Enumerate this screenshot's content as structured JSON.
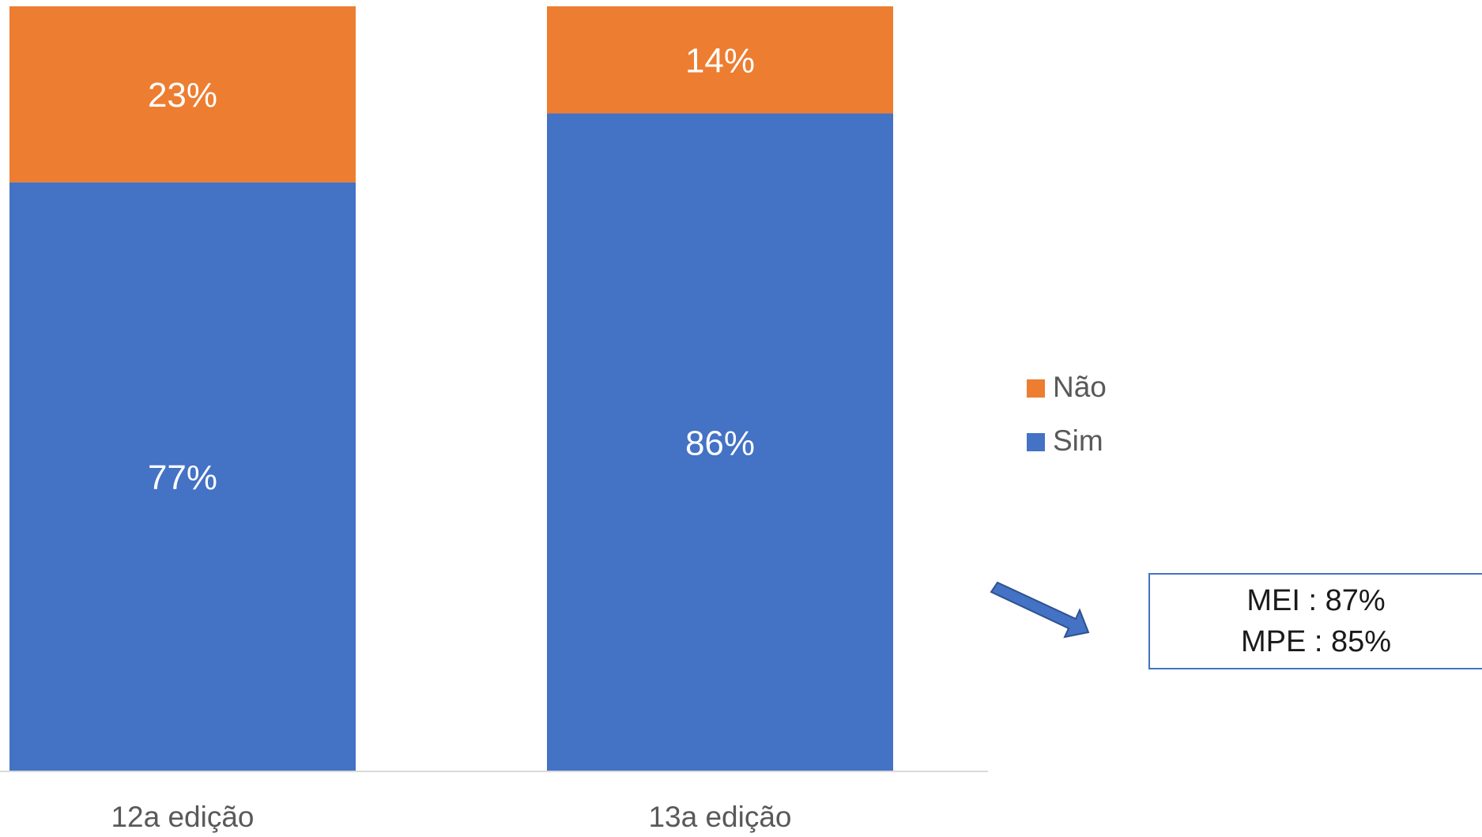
{
  "chart_data": {
    "type": "bar",
    "stacked": true,
    "normalized": true,
    "title": "",
    "xlabel": "",
    "ylabel": "",
    "ylim": [
      0,
      100
    ],
    "categories": [
      "12a edição",
      "13a edição"
    ],
    "series": [
      {
        "name": "Sim",
        "values": [
          77,
          86
        ],
        "labels": [
          "77%",
          "86%"
        ],
        "color": "#4472c4"
      },
      {
        "name": "Não",
        "values": [
          23,
          14
        ],
        "labels": [
          "23%",
          "14%"
        ],
        "color": "#ed7d31"
      }
    ],
    "legend": {
      "position": "right",
      "entries": [
        {
          "name": "Não",
          "color": "#ed7d31"
        },
        {
          "name": "Sim",
          "color": "#4472c4"
        }
      ]
    },
    "grid": false
  },
  "annotation": {
    "lines": [
      "MEI : 87%",
      "MPE : 85%"
    ],
    "arrow_color": "#4472c4"
  },
  "colors": {
    "axis": "#d9d9d9",
    "data_label": "#ffffff",
    "tick_label": "#595959",
    "legend_text": "#595959"
  }
}
